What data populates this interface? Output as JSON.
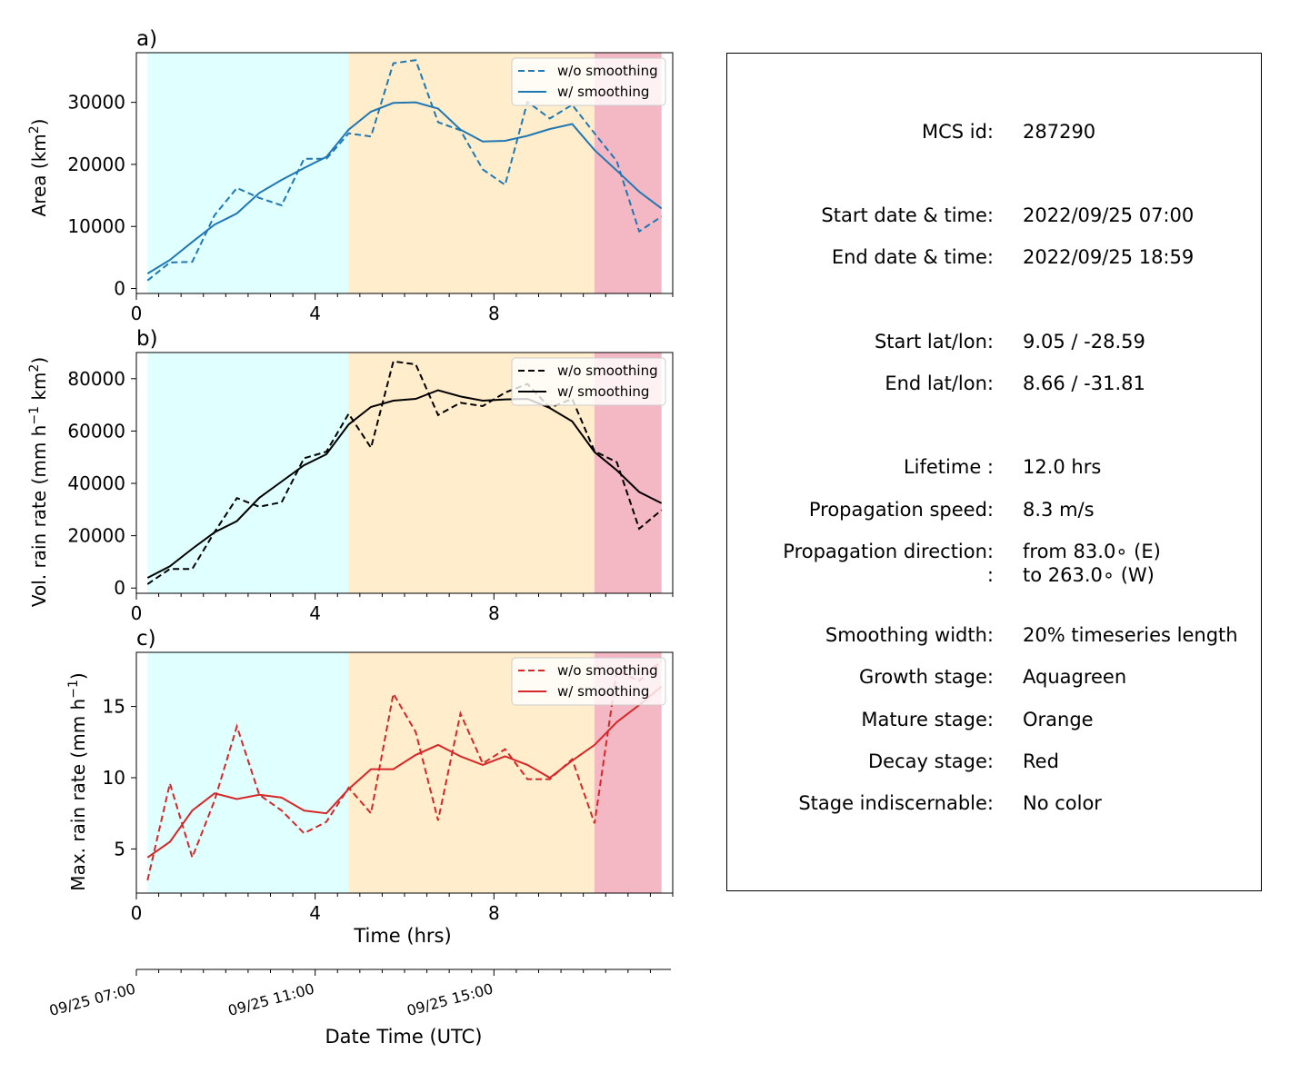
{
  "colors": {
    "area": "#1f77b4",
    "vol": "#000000",
    "max": "#d62728",
    "growth_bg": "#e0ffff",
    "mature_bg": "#ffedcb",
    "decay_bg": "#f4b8c4"
  },
  "stages": {
    "growth_hrs": [
      0.25,
      4.75
    ],
    "mature_hrs": [
      4.75,
      10.25
    ],
    "decay_hrs": [
      10.25,
      11.75
    ]
  },
  "chart_data": [
    {
      "type": "line",
      "panel_label": "a)",
      "ylabel": "Area  (km",
      "ylabel_sup": "2",
      "ylabel_end": ")",
      "xlim": [
        0,
        12
      ],
      "ylim": [
        -800,
        38000
      ],
      "yticks": [
        0,
        10000,
        20000,
        30000
      ],
      "xticks": [
        0,
        4,
        8
      ],
      "x": [
        0.25,
        0.75,
        1.25,
        1.75,
        2.25,
        2.75,
        3.25,
        3.75,
        4.25,
        4.75,
        5.25,
        5.75,
        6.25,
        6.75,
        7.25,
        7.75,
        8.25,
        8.75,
        9.25,
        9.75,
        10.25,
        10.75,
        11.25,
        11.75
      ],
      "legend": [
        "w/o smoothing",
        "w/ smoothing"
      ],
      "series": [
        {
          "name": "w/o smoothing",
          "style": "dashed",
          "values": [
            1300,
            4200,
            4300,
            11800,
            16200,
            14600,
            13400,
            20900,
            20900,
            25000,
            24500,
            36300,
            36800,
            26800,
            25500,
            19200,
            16700,
            30100,
            27400,
            29600,
            25000,
            20500,
            9200,
            11600
          ]
        },
        {
          "name": "w/ smoothing",
          "style": "solid",
          "values": [
            2400,
            4600,
            7500,
            10300,
            12100,
            15400,
            17500,
            19400,
            21200,
            25600,
            28500,
            29900,
            30000,
            29000,
            25600,
            23700,
            23800,
            24600,
            25700,
            26500,
            22300,
            19000,
            15600,
            12900
          ]
        }
      ]
    },
    {
      "type": "line",
      "panel_label": "b)",
      "ylabel": "Vol. rain rate (mm h",
      "ylabel_sup": "−1",
      "ylabel_mid": " km",
      "ylabel_sup2": "2",
      "ylabel_end": ")",
      "xlim": [
        0,
        12
      ],
      "ylim": [
        -2000,
        90000
      ],
      "yticks": [
        0,
        20000,
        40000,
        60000,
        80000
      ],
      "xticks": [
        0,
        4,
        8
      ],
      "x": [
        0.25,
        0.75,
        1.25,
        1.75,
        2.25,
        2.75,
        3.25,
        3.75,
        4.25,
        4.75,
        5.25,
        5.75,
        6.25,
        6.75,
        7.25,
        7.75,
        8.25,
        8.75,
        9.25,
        9.75,
        10.25,
        10.75,
        11.25,
        11.75
      ],
      "legend": [
        "w/o smoothing",
        "w/ smoothing"
      ],
      "series": [
        {
          "name": "w/o smoothing",
          "style": "dashed",
          "values": [
            1500,
            7300,
            7300,
            21400,
            34400,
            31100,
            32800,
            49600,
            52100,
            66600,
            53600,
            86600,
            85500,
            66100,
            70800,
            69500,
            74700,
            78000,
            68900,
            72300,
            52300,
            48100,
            22700,
            29800
          ]
        },
        {
          "name": "w/ smoothing",
          "style": "solid",
          "values": [
            3900,
            8300,
            15000,
            21300,
            25600,
            34500,
            40700,
            46900,
            51100,
            62500,
            69200,
            71600,
            72300,
            75600,
            73200,
            71600,
            72100,
            72300,
            68800,
            63700,
            52000,
            45000,
            36700,
            32400
          ]
        }
      ]
    },
    {
      "type": "line",
      "panel_label": "c)",
      "ylabel": "Max. rain rate  (mm h",
      "ylabel_sup": "−1",
      "ylabel_end": ")",
      "xlabel": "Time (hrs)",
      "xlim": [
        0,
        12
      ],
      "ylim": [
        1.9,
        18.8
      ],
      "yticks": [
        5,
        10,
        15
      ],
      "xticks": [
        0,
        4,
        8
      ],
      "x": [
        0.25,
        0.75,
        1.25,
        1.75,
        2.25,
        2.75,
        3.25,
        3.75,
        4.25,
        4.75,
        5.25,
        5.75,
        6.25,
        6.75,
        7.25,
        7.75,
        8.25,
        8.75,
        9.25,
        9.75,
        10.25,
        10.75,
        11.25,
        11.75
      ],
      "legend": [
        "w/o smoothing",
        "w/ smoothing"
      ],
      "series": [
        {
          "name": "w/o smoothing",
          "style": "dashed",
          "values": [
            2.8,
            9.6,
            4.4,
            8.4,
            13.6,
            8.8,
            7.7,
            6.1,
            6.9,
            9.3,
            7.5,
            15.9,
            13.2,
            7.0,
            14.5,
            11.0,
            12.0,
            9.9,
            9.9,
            11.3,
            6.8,
            17.5,
            16.8,
            18.2
          ]
        },
        {
          "name": "w/ smoothing",
          "style": "solid",
          "values": [
            4.4,
            5.5,
            7.7,
            8.9,
            8.5,
            8.8,
            8.6,
            7.7,
            7.5,
            9.2,
            10.6,
            10.6,
            11.6,
            12.3,
            11.5,
            10.9,
            11.5,
            10.9,
            10.0,
            11.2,
            12.3,
            13.9,
            15.1,
            16.4
          ]
        }
      ]
    }
  ],
  "datetime_axis": {
    "xlabel": "Date Time (UTC)",
    "ticks": [
      {
        "hrs": 0,
        "label": "09/25 07:00"
      },
      {
        "hrs": 4,
        "label": "09/25 11:00"
      },
      {
        "hrs": 8,
        "label": "09/25 15:00"
      }
    ]
  },
  "info": [
    {
      "label": "MCS id:",
      "value": "287290"
    },
    {
      "label": "Start date & time:",
      "value": "2022/09/25 07:00"
    },
    {
      "label": "End date & time:",
      "value": "2022/09/25 18:59"
    },
    {
      "label": "Start lat/lon:",
      "value": "9.05 / -28.59"
    },
    {
      "label": "End lat/lon:",
      "value": "8.66 / -31.81"
    },
    {
      "label": "Lifetime :",
      "value": "12.0 hrs"
    },
    {
      "label": "Propagation speed:",
      "value": "8.3 m/s"
    },
    {
      "label": "Propagation direction:",
      "value": "from  83.0∘ (E)"
    },
    {
      "label": ":",
      "value": "to   263.0∘ (W)"
    },
    {
      "label": "Smoothing width:",
      "value": "20% timeseries length"
    },
    {
      "label": "Growth stage:",
      "value": "Aquagreen"
    },
    {
      "label": "Mature stage:",
      "value": "Orange"
    },
    {
      "label": "Decay stage:",
      "value": "Red"
    },
    {
      "label": "Stage indiscernable:",
      "value": "No color"
    }
  ]
}
